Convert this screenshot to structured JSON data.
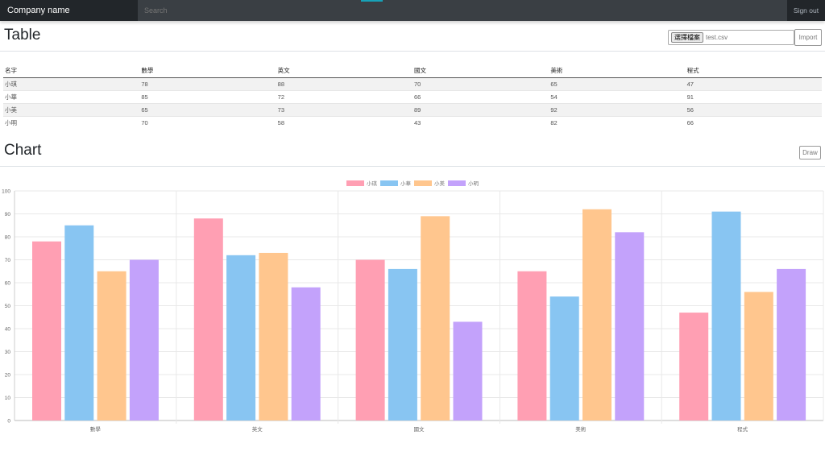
{
  "nav": {
    "brand": "Company name",
    "search_placeholder": "Search",
    "signout": "Sign out"
  },
  "table_section": {
    "title": "Table",
    "file_button": "選擇檔案",
    "file_name": "test.csv",
    "import": "Import",
    "headers": [
      "名字",
      "數學",
      "英文",
      "國文",
      "美術",
      "程式"
    ],
    "rows": [
      [
        "小琪",
        "78",
        "88",
        "70",
        "65",
        "47"
      ],
      [
        "小華",
        "85",
        "72",
        "66",
        "54",
        "91"
      ],
      [
        "小美",
        "65",
        "73",
        "89",
        "92",
        "56"
      ],
      [
        "小明",
        "70",
        "58",
        "43",
        "82",
        "66"
      ]
    ]
  },
  "chart_section": {
    "title": "Chart",
    "draw": "Draw"
  },
  "chart_data": {
    "type": "bar",
    "categories": [
      "數學",
      "英文",
      "國文",
      "美術",
      "程式"
    ],
    "series": [
      {
        "name": "小琪",
        "color": "#ff9fb3",
        "values": [
          78,
          88,
          70,
          65,
          47
        ]
      },
      {
        "name": "小華",
        "color": "#88c5f2",
        "values": [
          85,
          72,
          66,
          54,
          91
        ]
      },
      {
        "name": "小美",
        "color": "#ffc68e",
        "values": [
          65,
          73,
          89,
          92,
          56
        ]
      },
      {
        "name": "小明",
        "color": "#c3a2fb",
        "values": [
          70,
          58,
          43,
          82,
          66
        ]
      }
    ],
    "ylim": [
      0,
      100
    ],
    "yticks": [
      0,
      10,
      20,
      30,
      40,
      50,
      60,
      70,
      80,
      90,
      100
    ],
    "legend": "top",
    "grid": true
  }
}
